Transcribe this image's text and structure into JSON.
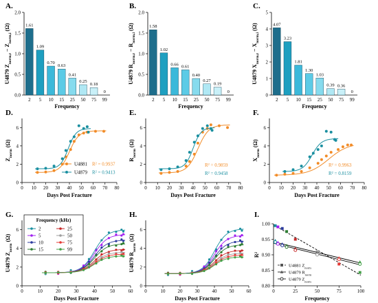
{
  "chart_data": [
    {
      "panel": "A.",
      "type": "bar",
      "ylabel": "U4879 Z_norm,t − Z_norm,i (Ω)",
      "xlabel": "Frequency",
      "categories": [
        "2",
        "5",
        "10",
        "15",
        "25",
        "50",
        "75",
        "99"
      ],
      "values": [
        1.61,
        1.09,
        0.7,
        0.63,
        0.41,
        0.25,
        0.18,
        0
      ],
      "value_labels": [
        "1.61",
        "1.09",
        "0.70",
        "0.63",
        "0.41",
        "0.25",
        "0.18",
        "0"
      ],
      "ylim": [
        0,
        2
      ],
      "yticks": [
        {
          "v": 0,
          "label": "0.0"
        },
        {
          "v": 0.5,
          "label": "0.5"
        },
        {
          "v": 1,
          "label": "1.0"
        },
        {
          "v": 1.5,
          "label": "1.5"
        },
        {
          "v": 2,
          "label": "2.0"
        }
      ]
    },
    {
      "panel": "B.",
      "type": "bar",
      "ylabel": "U4879 R_norm,t − R_norm,i (Ω)",
      "xlabel": "Frequency",
      "categories": [
        "2",
        "5",
        "10",
        "15",
        "25",
        "50",
        "75",
        "99"
      ],
      "values": [
        1.58,
        1.02,
        0.66,
        0.61,
        0.4,
        0.27,
        0.19,
        0
      ],
      "value_labels": [
        "1.58",
        "1.02",
        "0.66",
        "0.61",
        "0.40",
        "0.27",
        "0.19",
        "0"
      ],
      "ylim": [
        0,
        2
      ],
      "yticks": [
        {
          "v": 0,
          "label": "0.0"
        },
        {
          "v": 0.5,
          "label": "0.5"
        },
        {
          "v": 1,
          "label": "1.0"
        },
        {
          "v": 1.5,
          "label": "1.5"
        },
        {
          "v": 2,
          "label": "2.0"
        }
      ]
    },
    {
      "panel": "C.",
      "type": "bar",
      "ylabel": "U4879 X_norm,t − X_norm,i (Ω)",
      "xlabel": "Frequency",
      "categories": [
        "2",
        "5",
        "10",
        "15",
        "25",
        "50",
        "75",
        "99"
      ],
      "values": [
        4.07,
        3.23,
        1.81,
        1.3,
        1.03,
        0.39,
        0.36,
        0
      ],
      "value_labels": [
        "4.07",
        "3.23",
        "1.81",
        "1.30",
        "1.03",
        "0.39",
        "0.36",
        "0"
      ],
      "ylim": [
        0,
        5
      ],
      "yticks": [
        {
          "v": 0,
          "label": "0"
        },
        {
          "v": 1,
          "label": "1"
        },
        {
          "v": 2,
          "label": "2"
        },
        {
          "v": 3,
          "label": "3"
        },
        {
          "v": 4,
          "label": "4"
        },
        {
          "v": 5,
          "label": "5"
        }
      ]
    },
    {
      "panel": "D.",
      "type": "scatter",
      "ylabel": "Z_norm (Ω)",
      "xlabel": "Days Post Fracture",
      "xlim": [
        0,
        80
      ],
      "xticks": [
        0,
        10,
        20,
        30,
        40,
        50,
        60,
        70,
        80
      ],
      "ylim": [
        0,
        7
      ],
      "yticks": [
        0,
        2,
        4,
        6
      ],
      "legend": [
        {
          "name": "U4881",
          "r2": "R² = 0.9937",
          "color": "#F28C28"
        },
        {
          "name": "U4879",
          "r2": "R² = 0.9413",
          "color": "#1A8FA0"
        }
      ],
      "series": [
        {
          "name": "U4881",
          "color": "#F28C28",
          "fit": {
            "lo": 1.1,
            "hi": 5.65,
            "x0": 40,
            "k": 0.25
          },
          "points": [
            [
              13,
              1.1
            ],
            [
              20,
              1.15
            ],
            [
              27,
              1.3
            ],
            [
              34,
              2.0
            ],
            [
              37,
              2.8
            ],
            [
              41,
              3.6
            ],
            [
              44,
              4.5
            ],
            [
              48,
              5.2
            ],
            [
              52,
              5.4
            ],
            [
              55,
              5.5
            ],
            [
              62,
              5.6
            ],
            [
              69,
              5.6
            ]
          ]
        },
        {
          "name": "U4879",
          "color": "#1A8FA0",
          "fit": {
            "lo": 1.5,
            "hi": 5.9,
            "x0": 39,
            "k": 0.3
          },
          "points": [
            [
              13,
              1.5
            ],
            [
              20,
              1.55
            ],
            [
              27,
              1.8
            ],
            [
              34,
              2.6
            ],
            [
              37,
              3.5
            ],
            [
              41,
              4.5
            ],
            [
              44,
              5.0
            ],
            [
              48,
              6.2
            ],
            [
              52,
              5.9
            ],
            [
              55,
              6.1
            ],
            [
              56,
              5.5
            ]
          ]
        }
      ]
    },
    {
      "panel": "E.",
      "type": "scatter",
      "ylabel": "R_norm (Ω)",
      "xlabel": "Days Post Fracture",
      "xlim": [
        0,
        80
      ],
      "xticks": [
        0,
        10,
        20,
        30,
        40,
        50,
        60,
        70,
        80
      ],
      "ylim": [
        0,
        7
      ],
      "yticks": [
        0,
        2,
        4,
        6
      ],
      "legend": [
        {
          "name": "U4881",
          "r2": "R² = 0.9859",
          "color": "#F28C28"
        },
        {
          "name": "U4879",
          "r2": "R² = 0.9458",
          "color": "#1A8FA0"
        }
      ],
      "series": [
        {
          "name": "U4881",
          "color": "#F28C28",
          "fit": {
            "lo": 1.05,
            "hi": 6.3,
            "x0": 44,
            "k": 0.22
          },
          "points": [
            [
              13,
              1.0
            ],
            [
              20,
              1.1
            ],
            [
              27,
              1.2
            ],
            [
              34,
              1.8
            ],
            [
              37,
              2.3
            ],
            [
              41,
              3.1
            ],
            [
              44,
              4.3
            ],
            [
              48,
              5.5
            ],
            [
              52,
              5.9
            ],
            [
              55,
              6.3
            ],
            [
              62,
              6.2
            ],
            [
              69,
              6.0
            ]
          ]
        },
        {
          "name": "U4879",
          "color": "#1A8FA0",
          "fit": {
            "lo": 1.5,
            "hi": 6.0,
            "x0": 40,
            "k": 0.3
          },
          "points": [
            [
              13,
              1.4
            ],
            [
              20,
              1.5
            ],
            [
              27,
              1.7
            ],
            [
              34,
              2.4
            ],
            [
              37,
              3.3
            ],
            [
              41,
              4.4
            ],
            [
              44,
              5.1
            ],
            [
              48,
              5.9
            ],
            [
              52,
              6.2
            ],
            [
              55,
              5.9
            ],
            [
              56,
              5.7
            ]
          ]
        }
      ]
    },
    {
      "panel": "F.",
      "type": "scatter",
      "ylabel": "X_norm (Ω)",
      "xlabel": "Days Post Fracture",
      "xlim": [
        0,
        80
      ],
      "xticks": [
        0,
        10,
        20,
        30,
        40,
        50,
        60,
        70,
        80
      ],
      "ylim": [
        0,
        7
      ],
      "yticks": [
        0,
        2,
        4,
        6
      ],
      "legend": [
        {
          "name": "U4881",
          "r2": "R² = 0.9963",
          "color": "#F28C28"
        },
        {
          "name": "U4879",
          "r2": "R² = 0.8159",
          "color": "#1A8FA0"
        }
      ],
      "series": [
        {
          "name": "U4881",
          "color": "#F28C28",
          "fit": {
            "lo": 0.8,
            "hi": 4.3,
            "x0": 50,
            "k": 0.12
          },
          "points": [
            [
              6,
              0.8
            ],
            [
              13,
              0.9
            ],
            [
              20,
              1.0
            ],
            [
              27,
              1.2
            ],
            [
              34,
              1.6
            ],
            [
              41,
              2.1
            ],
            [
              44,
              2.5
            ],
            [
              48,
              2.9
            ],
            [
              52,
              3.3
            ],
            [
              58,
              3.6
            ],
            [
              62,
              3.9
            ],
            [
              66,
              4.1
            ],
            [
              69,
              4.1
            ]
          ]
        },
        {
          "name": "U4879",
          "color": "#1A8FA0",
          "fit": {
            "lo": 1.2,
            "hi": 4.8,
            "x0": 36,
            "k": 0.25
          },
          "points": [
            [
              13,
              1.2
            ],
            [
              20,
              1.4
            ],
            [
              27,
              1.8
            ],
            [
              34,
              2.8
            ],
            [
              37,
              3.2
            ],
            [
              41,
              3.6
            ],
            [
              44,
              4.0
            ],
            [
              48,
              5.6
            ],
            [
              52,
              5.5
            ],
            [
              55,
              4.7
            ],
            [
              56,
              4.6
            ]
          ]
        }
      ]
    },
    {
      "panel": "G.",
      "type": "scatter",
      "ylabel": "U4879 Z_norm (Ω)",
      "xlabel": "Days Post Fracture",
      "xlim": [
        0,
        60
      ],
      "xticks": [
        0,
        10,
        20,
        30,
        40,
        50,
        60
      ],
      "ylim": [
        0,
        7
      ],
      "yticks": [
        0,
        2,
        4,
        6
      ],
      "legend_title": "Frequency (kHz)",
      "days": [
        13,
        20,
        27,
        34,
        37,
        41,
        44,
        48,
        52,
        55,
        56
      ],
      "series": [
        {
          "name": "2",
          "color": "#1A8FA0",
          "hi": 6.0
        },
        {
          "name": "5",
          "color": "#A020F0",
          "hi": 5.5
        },
        {
          "name": "10",
          "color": "#2B3A9E",
          "hi": 4.9
        },
        {
          "name": "15",
          "color": "#2E7D32",
          "hi": 4.5
        },
        {
          "name": "25",
          "color": "#C62828",
          "hi": 3.9
        },
        {
          "name": "50",
          "color": "#9E9E9E",
          "hi": 3.6
        },
        {
          "name": "75",
          "color": "#E53935",
          "hi": 3.4
        },
        {
          "name": "99",
          "color": "#43A047",
          "hi": 3.2
        }
      ],
      "lo": 1.4
    },
    {
      "panel": "H.",
      "type": "scatter",
      "ylabel": "U4879 R_norm (Ω)",
      "xlabel": "Days Post Fracture",
      "xlim": [
        0,
        60
      ],
      "xticks": [
        0,
        10,
        20,
        30,
        40,
        50,
        60
      ],
      "ylim": [
        0,
        7
      ],
      "yticks": [
        0,
        2,
        4,
        6
      ],
      "days": [
        13,
        20,
        27,
        34,
        37,
        41,
        44,
        48,
        52,
        55,
        56
      ],
      "series": [
        {
          "name": "2",
          "color": "#1A8FA0",
          "hi": 6.1
        },
        {
          "name": "5",
          "color": "#A020F0",
          "hi": 5.4
        },
        {
          "name": "10",
          "color": "#2B3A9E",
          "hi": 4.8
        },
        {
          "name": "15",
          "color": "#2E7D32",
          "hi": 4.4
        },
        {
          "name": "25",
          "color": "#C62828",
          "hi": 3.8
        },
        {
          "name": "50",
          "color": "#9E9E9E",
          "hi": 3.5
        },
        {
          "name": "75",
          "color": "#E53935",
          "hi": 3.3
        },
        {
          "name": "99",
          "color": "#43A047",
          "hi": 3.1
        }
      ],
      "lo": 1.3
    },
    {
      "panel": "I.",
      "type": "scatter",
      "ylabel": "R²",
      "xlabel": "Frequency",
      "xlim": [
        0,
        100
      ],
      "xticks": [
        0,
        25,
        50,
        75,
        100
      ],
      "ylim": [
        0.8,
        1.0
      ],
      "yticks": [
        {
          "v": 0.8,
          "label": "0.80"
        },
        {
          "v": 0.85,
          "label": "0.85"
        },
        {
          "v": 0.9,
          "label": "0.90"
        },
        {
          "v": 0.95,
          "label": "0.95"
        },
        {
          "v": 1.0,
          "label": "1.00"
        }
      ],
      "legend": [
        "U4881 Z_norm",
        "U4879 R_norm",
        "U4879 Z_norm"
      ],
      "freqs": [
        2,
        5,
        10,
        15,
        25,
        50,
        75,
        99
      ],
      "colors": [
        "#1A8FA0",
        "#A020F0",
        "#2B3A9E",
        "#2E7D32",
        "#C62828",
        "#9E9E9E",
        "#E53935",
        "#43A047"
      ],
      "series": [
        {
          "name": "U4881 Z_norm",
          "marker": "square",
          "line": "dash",
          "values": [
            0.994,
            0.99,
            0.985,
            0.975,
            0.95,
            0.91,
            0.87,
            0.843
          ]
        },
        {
          "name": "U4879 R_norm",
          "marker": "triangle",
          "line": "solid",
          "values": [
            0.946,
            0.94,
            0.935,
            0.93,
            0.92,
            0.905,
            0.89,
            0.877
          ]
        },
        {
          "name": "U4879 Z_norm",
          "marker": "circle",
          "line": "solid",
          "values": [
            0.941,
            0.935,
            0.93,
            0.925,
            0.915,
            0.9,
            0.885,
            0.87
          ]
        }
      ]
    }
  ]
}
